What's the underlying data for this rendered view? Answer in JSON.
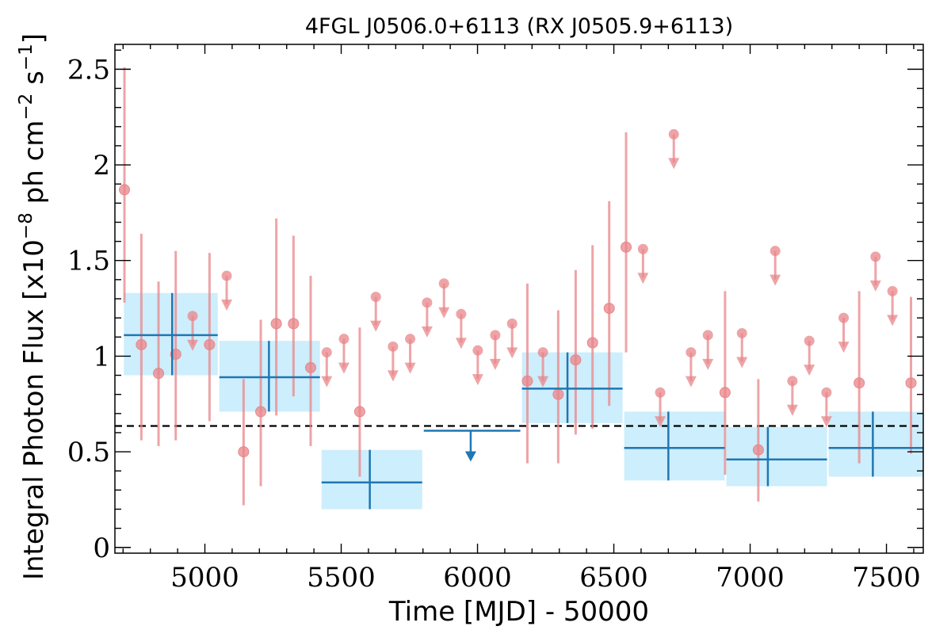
{
  "chart_data": {
    "type": "scatter",
    "title": "4FGL J0506.0+6113 (RX J0505.9+6113)",
    "xlabel": "Time [MJD] - 50000",
    "ylabel_parts": {
      "prefix": "Integral Photon Flux [x10",
      "exp1": "−8",
      "middle": " ph cm",
      "exp2": "−2",
      "s": " s",
      "exp3": "−1",
      "suffix": "]"
    },
    "xlim": [
      4670,
      7635
    ],
    "ylim": [
      -0.03,
      2.63
    ],
    "x_ticks": [
      5000,
      5500,
      6000,
      6500,
      7000,
      7500
    ],
    "x_tick_labels": [
      "5000",
      "5500",
      "6000",
      "6500",
      "7000",
      "7500"
    ],
    "y_ticks": [
      0,
      0.5,
      1,
      1.5,
      2,
      2.5
    ],
    "y_tick_labels": [
      "0",
      "0.5",
      "1",
      "1.5",
      "2",
      "2.5"
    ],
    "average_flux": 0.635,
    "grid": false,
    "colors": {
      "short_bins": "#e8868a",
      "long_bins": "#1f77b4",
      "bin_band": "#cdeefc",
      "mean_line": "#000000"
    },
    "series": [
      {
        "binning": "short",
        "detections": [
          {
            "x": 4705,
            "y": 1.87,
            "lo": 1.28,
            "hi": 2.51
          },
          {
            "x": 4767,
            "y": 1.06,
            "lo": 0.56,
            "hi": 1.64
          },
          {
            "x": 4830,
            "y": 0.91,
            "lo": 0.53,
            "hi": 1.39
          },
          {
            "x": 4893,
            "y": 1.01,
            "lo": 0.56,
            "hi": 1.55
          },
          {
            "x": 5017,
            "y": 1.06,
            "lo": 0.66,
            "hi": 1.54
          },
          {
            "x": 5142,
            "y": 0.5,
            "lo": 0.22,
            "hi": 0.88
          },
          {
            "x": 5205,
            "y": 0.71,
            "lo": 0.32,
            "hi": 1.19
          },
          {
            "x": 5262,
            "y": 1.17,
            "lo": 0.69,
            "hi": 1.72
          },
          {
            "x": 5325,
            "y": 1.17,
            "lo": 0.79,
            "hi": 1.63
          },
          {
            "x": 5388,
            "y": 0.94,
            "lo": 0.53,
            "hi": 1.42
          },
          {
            "x": 5568,
            "y": 0.71,
            "lo": 0.37,
            "hi": 1.15
          },
          {
            "x": 6183,
            "y": 0.87,
            "lo": 0.44,
            "hi": 1.38
          },
          {
            "x": 6296,
            "y": 0.8,
            "lo": 0.44,
            "hi": 1.24
          },
          {
            "x": 6360,
            "y": 0.98,
            "lo": 0.59,
            "hi": 1.45
          },
          {
            "x": 6422,
            "y": 1.07,
            "lo": 0.62,
            "hi": 1.58
          },
          {
            "x": 6483,
            "y": 1.25,
            "lo": 0.74,
            "hi": 1.81
          },
          {
            "x": 6545,
            "y": 1.57,
            "lo": 1.02,
            "hi": 2.17
          },
          {
            "x": 6908,
            "y": 0.81,
            "lo": 0.38,
            "hi": 1.34
          },
          {
            "x": 7030,
            "y": 0.51,
            "lo": 0.24,
            "hi": 0.88
          },
          {
            "x": 7400,
            "y": 0.86,
            "lo": 0.44,
            "hi": 1.34
          },
          {
            "x": 7590,
            "y": 0.86,
            "lo": 0.49,
            "hi": 1.31
          }
        ],
        "upper_limits": [
          {
            "x": 4955,
            "y": 1.21
          },
          {
            "x": 5080,
            "y": 1.42
          },
          {
            "x": 5447,
            "y": 1.02
          },
          {
            "x": 5510,
            "y": 1.09
          },
          {
            "x": 5627,
            "y": 1.31
          },
          {
            "x": 5690,
            "y": 1.05
          },
          {
            "x": 5753,
            "y": 1.09
          },
          {
            "x": 5815,
            "y": 1.28
          },
          {
            "x": 5877,
            "y": 1.38
          },
          {
            "x": 5940,
            "y": 1.22
          },
          {
            "x": 6001,
            "y": 1.03
          },
          {
            "x": 6065,
            "y": 1.11
          },
          {
            "x": 6127,
            "y": 1.17
          },
          {
            "x": 6240,
            "y": 1.02
          },
          {
            "x": 6607,
            "y": 1.56
          },
          {
            "x": 6670,
            "y": 0.81
          },
          {
            "x": 6720,
            "y": 2.16
          },
          {
            "x": 6783,
            "y": 1.02
          },
          {
            "x": 6845,
            "y": 1.11
          },
          {
            "x": 6970,
            "y": 1.12
          },
          {
            "x": 7092,
            "y": 1.55
          },
          {
            "x": 7155,
            "y": 0.87
          },
          {
            "x": 7217,
            "y": 1.08
          },
          {
            "x": 7280,
            "y": 0.81
          },
          {
            "x": 7343,
            "y": 1.2
          },
          {
            "x": 7460,
            "y": 1.52
          },
          {
            "x": 7522,
            "y": 1.34
          }
        ]
      },
      {
        "binning": "long",
        "detections": [
          {
            "x0": 4700,
            "x1": 5050,
            "xc": 4880,
            "y": 1.11,
            "lo": 0.9,
            "hi": 1.33
          },
          {
            "x0": 5050,
            "x1": 5425,
            "xc": 5235,
            "y": 0.89,
            "lo": 0.71,
            "hi": 1.08
          },
          {
            "x0": 5425,
            "x1": 5800,
            "xc": 5605,
            "y": 0.34,
            "lo": 0.2,
            "hi": 0.51
          },
          {
            "x0": 6160,
            "x1": 6535,
            "xc": 6330,
            "y": 0.83,
            "lo": 0.65,
            "hi": 1.02
          },
          {
            "x0": 6535,
            "x1": 6910,
            "xc": 6700,
            "y": 0.52,
            "lo": 0.35,
            "hi": 0.71
          },
          {
            "x0": 6910,
            "x1": 7285,
            "xc": 7065,
            "y": 0.46,
            "lo": 0.32,
            "hi": 0.63
          },
          {
            "x0": 7285,
            "x1": 7660,
            "xc": 7450,
            "y": 0.52,
            "lo": 0.37,
            "hi": 0.71
          }
        ],
        "upper_limits": [
          {
            "x0": 5800,
            "x1": 6160,
            "xc": 5975,
            "y": 0.61
          }
        ]
      }
    ]
  }
}
